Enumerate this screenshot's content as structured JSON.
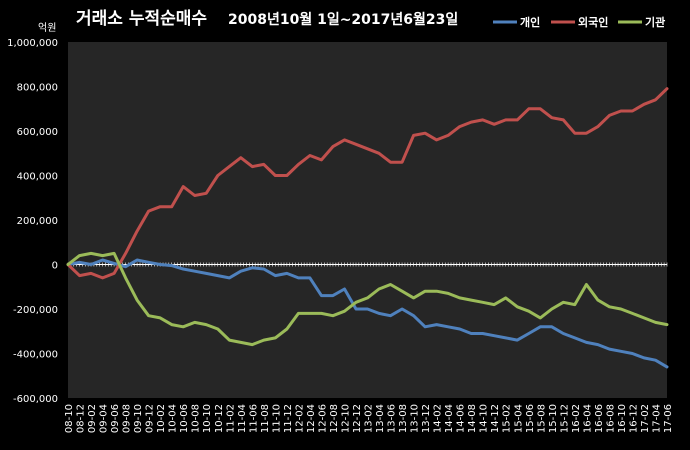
{
  "chart_data": {
    "type": "line",
    "title": "거래소 누적순매수",
    "subtitle": "2008년10월 1일~2017년6월23일",
    "ylabel": "억원",
    "xlabel": "",
    "ylim": [
      -600000,
      1000000
    ],
    "ytick_step": 200000,
    "yticks": [
      "1,000,000",
      "800,000",
      "600,000",
      "400,000",
      "200,000",
      "0",
      "-200,000",
      "-400,000",
      "-600,000"
    ],
    "xticks": [
      "08-10",
      "08-12",
      "09-02",
      "09-04",
      "09-06",
      "09-08",
      "09-10",
      "09-12",
      "10-02",
      "10-04",
      "10-06",
      "10-08",
      "10-10",
      "10-12",
      "11-02",
      "11-04",
      "11-06",
      "11-08",
      "11-10",
      "11-12",
      "12-02",
      "12-04",
      "12-06",
      "12-08",
      "12-10",
      "12-12",
      "13-02",
      "13-04",
      "13-06",
      "13-08",
      "13-10",
      "13-12",
      "14-02",
      "14-04",
      "14-06",
      "14-08",
      "14-10",
      "14-12",
      "15-02",
      "15-04",
      "15-06",
      "15-08",
      "15-10",
      "15-12",
      "16-02",
      "16-04",
      "16-06",
      "16-08",
      "16-10",
      "16-12",
      "17-02",
      "17-04",
      "17-06"
    ],
    "grid": false,
    "legend_position": "top-right",
    "series": [
      {
        "name": "개인",
        "color": "#4f81bd",
        "values": [
          0,
          10000,
          0,
          20000,
          5000,
          -10000,
          20000,
          10000,
          0,
          -5000,
          -20000,
          -30000,
          -40000,
          -50000,
          -60000,
          -30000,
          -15000,
          -20000,
          -50000,
          -40000,
          -60000,
          -60000,
          -140000,
          -140000,
          -110000,
          -200000,
          -200000,
          -220000,
          -230000,
          -200000,
          -230000,
          -280000,
          -270000,
          -280000,
          -290000,
          -310000,
          -310000,
          -320000,
          -330000,
          -340000,
          -310000,
          -280000,
          -280000,
          -310000,
          -330000,
          -350000,
          -360000,
          -380000,
          -390000,
          -400000,
          -420000,
          -430000,
          -460000
        ]
      },
      {
        "name": "외국인",
        "color": "#c0504d",
        "values": [
          0,
          -50000,
          -40000,
          -60000,
          -40000,
          50000,
          150000,
          240000,
          260000,
          260000,
          350000,
          310000,
          320000,
          400000,
          440000,
          480000,
          440000,
          450000,
          400000,
          400000,
          450000,
          490000,
          470000,
          530000,
          560000,
          540000,
          520000,
          500000,
          460000,
          460000,
          580000,
          590000,
          560000,
          580000,
          620000,
          640000,
          650000,
          630000,
          650000,
          650000,
          700000,
          700000,
          660000,
          650000,
          590000,
          590000,
          620000,
          670000,
          690000,
          690000,
          720000,
          740000,
          790000
        ]
      },
      {
        "name": "기관",
        "color": "#9bbb59",
        "values": [
          0,
          40000,
          50000,
          40000,
          50000,
          -60000,
          -160000,
          -230000,
          -240000,
          -270000,
          -280000,
          -260000,
          -270000,
          -290000,
          -340000,
          -350000,
          -360000,
          -340000,
          -330000,
          -290000,
          -220000,
          -220000,
          -220000,
          -230000,
          -210000,
          -170000,
          -150000,
          -110000,
          -90000,
          -120000,
          -150000,
          -120000,
          -120000,
          -130000,
          -150000,
          -160000,
          -170000,
          -180000,
          -150000,
          -190000,
          -210000,
          -240000,
          -200000,
          -170000,
          -180000,
          -90000,
          -160000,
          -190000,
          -200000,
          -220000,
          -240000,
          -260000,
          -270000
        ]
      }
    ]
  }
}
